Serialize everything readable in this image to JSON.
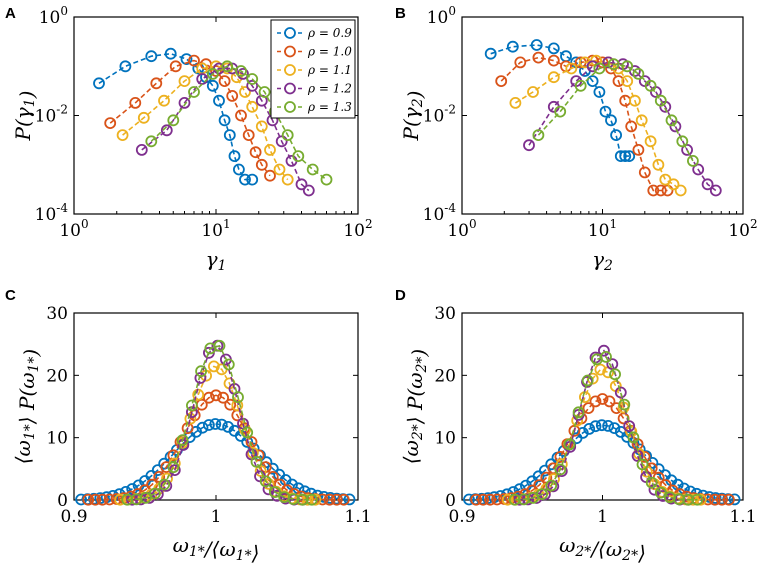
{
  "colors": {
    "series": [
      "#0072BD",
      "#D95319",
      "#EDB120",
      "#7E2F8E",
      "#77AC30"
    ]
  },
  "legend": {
    "entries": [
      "ρ = 0.9",
      "ρ = 1.0",
      "ρ = 1.1",
      "ρ = 1.2",
      "ρ = 1.3"
    ],
    "placement": "top-right of panel A"
  },
  "chart_data": [
    {
      "panel": "A",
      "type": "scatter",
      "xscale": "log",
      "yscale": "log",
      "xlim": [
        1,
        100
      ],
      "ylim": [
        0.0001,
        1
      ],
      "xlabel": "γ1",
      "ylabel": "P(γ1)",
      "xticks": [
        "10^0",
        "10^1",
        "10^2"
      ],
      "yticks": [
        "10^-4",
        "10^-2",
        "10^0"
      ],
      "series": [
        {
          "name": "ρ = 0.9",
          "x": [
            1.5,
            2.3,
            3.5,
            4.8,
            6.2,
            7.5,
            8.5,
            9.5,
            10.5,
            11.5,
            12.5,
            13.5,
            14.5,
            16,
            18
          ],
          "y": [
            0.045,
            0.1,
            0.16,
            0.18,
            0.14,
            0.09,
            0.06,
            0.04,
            0.02,
            0.008,
            0.004,
            0.0015,
            0.0008,
            0.0005,
            0.0005
          ]
        },
        {
          "name": "ρ = 1.0",
          "x": [
            1.8,
            2.7,
            3.8,
            5.2,
            7,
            8.5,
            10,
            11.5,
            13,
            15,
            17,
            19,
            21,
            24
          ],
          "y": [
            0.007,
            0.018,
            0.045,
            0.1,
            0.13,
            0.11,
            0.08,
            0.05,
            0.025,
            0.01,
            0.004,
            0.0018,
            0.001,
            0.0006
          ]
        },
        {
          "name": "ρ = 1.1",
          "x": [
            2.2,
            3.1,
            4.3,
            6,
            8,
            10,
            12,
            14,
            16,
            18,
            21,
            24,
            28,
            32
          ],
          "y": [
            0.004,
            0.009,
            0.02,
            0.05,
            0.09,
            0.1,
            0.09,
            0.06,
            0.03,
            0.015,
            0.006,
            0.002,
            0.0008,
            0.0005
          ]
        },
        {
          "name": "ρ = 1.2",
          "x": [
            3,
            4.5,
            6,
            8,
            10.5,
            13,
            15.5,
            18,
            21,
            25,
            29,
            34,
            40,
            45
          ],
          "y": [
            0.002,
            0.005,
            0.018,
            0.055,
            0.09,
            0.09,
            0.07,
            0.04,
            0.02,
            0.008,
            0.003,
            0.0012,
            0.0004,
            0.0003
          ]
        },
        {
          "name": "ρ = 1.3",
          "x": [
            3.5,
            5,
            7,
            9.5,
            12,
            15,
            18,
            22,
            26,
            32,
            38,
            48,
            60
          ],
          "y": [
            0.003,
            0.008,
            0.03,
            0.07,
            0.1,
            0.08,
            0.055,
            0.03,
            0.012,
            0.004,
            0.0015,
            0.0008,
            0.0005
          ]
        }
      ]
    },
    {
      "panel": "B",
      "type": "scatter",
      "xscale": "log",
      "yscale": "log",
      "xlim": [
        1,
        100
      ],
      "ylim": [
        0.0001,
        1
      ],
      "xlabel": "γ2",
      "ylabel": "P(γ2)",
      "xticks": [
        "10^0",
        "10^1",
        "10^2"
      ],
      "yticks": [
        "10^-4",
        "10^-2",
        "10^0"
      ],
      "series": [
        {
          "name": "ρ = 0.9",
          "x": [
            1.6,
            2.3,
            3.4,
            4.5,
            5.5,
            6.5,
            7.5,
            8.5,
            9.5,
            10.5,
            11.5,
            12.5,
            13.5,
            14.5,
            15.5
          ],
          "y": [
            0.18,
            0.25,
            0.27,
            0.23,
            0.16,
            0.12,
            0.08,
            0.05,
            0.03,
            0.012,
            0.008,
            0.004,
            0.0015,
            0.0015,
            0.0015
          ]
        },
        {
          "name": "ρ = 1.0",
          "x": [
            1.9,
            2.6,
            3.5,
            4.5,
            5.5,
            7,
            8.5,
            10,
            11.5,
            13,
            14.5,
            16,
            18,
            20,
            23,
            26,
            29
          ],
          "y": [
            0.05,
            0.12,
            0.15,
            0.13,
            0.1,
            0.12,
            0.13,
            0.12,
            0.09,
            0.05,
            0.02,
            0.006,
            0.002,
            0.0007,
            0.0003,
            0.0003,
            0.0003
          ]
        },
        {
          "name": "ρ = 1.1",
          "x": [
            2.4,
            3.2,
            4.5,
            6,
            7.5,
            9,
            11,
            13,
            15,
            17,
            19,
            22,
            25,
            28,
            32,
            36
          ],
          "y": [
            0.018,
            0.03,
            0.06,
            0.09,
            0.12,
            0.13,
            0.12,
            0.09,
            0.05,
            0.02,
            0.008,
            0.003,
            0.001,
            0.0005,
            0.0004,
            0.0003
          ]
        },
        {
          "name": "ρ = 1.2",
          "x": [
            3,
            4.5,
            6.5,
            8.5,
            11,
            14,
            17,
            20,
            24,
            28,
            33,
            40,
            48,
            56,
            64
          ],
          "y": [
            0.0025,
            0.015,
            0.05,
            0.1,
            0.12,
            0.11,
            0.08,
            0.05,
            0.03,
            0.015,
            0.006,
            0.002,
            0.0008,
            0.0004,
            0.0003
          ]
        },
        {
          "name": "ρ = 1.3",
          "x": [
            3.5,
            5,
            7,
            9.5,
            12,
            15,
            18,
            22,
            26,
            31,
            37,
            44
          ],
          "y": [
            0.004,
            0.012,
            0.04,
            0.09,
            0.11,
            0.1,
            0.07,
            0.04,
            0.02,
            0.008,
            0.003,
            0.0012
          ]
        }
      ]
    },
    {
      "panel": "C",
      "type": "scatter",
      "xscale": "linear",
      "yscale": "linear",
      "xlim": [
        0.9,
        1.1
      ],
      "ylim": [
        0,
        30
      ],
      "xlabel": "ω1*/⟨ω1*⟩",
      "ylabel": "⟨ω1*⟩ P(ω1*)",
      "xticks": [
        "0.9",
        "1",
        "1.1"
      ],
      "yticks": [
        "0",
        "10",
        "20",
        "30"
      ],
      "widths": [
        0.03,
        0.023,
        0.018,
        0.016,
        0.017
      ],
      "peaks": [
        12.2,
        16.8,
        21.5,
        24.8,
        25.0
      ],
      "series": [
        {
          "name": "ρ = 0.9"
        },
        {
          "name": "ρ = 1.0"
        },
        {
          "name": "ρ = 1.1"
        },
        {
          "name": "ρ = 1.2"
        },
        {
          "name": "ρ = 1.3"
        }
      ]
    },
    {
      "panel": "D",
      "type": "scatter",
      "xscale": "linear",
      "yscale": "linear",
      "xlim": [
        0.9,
        1.1
      ],
      "ylim": [
        0,
        30
      ],
      "xlabel": "ω2*/⟨ω2*⟩",
      "ylabel": "⟨ω2*⟩ P(ω2*)",
      "xticks": [
        "0.9",
        "1",
        "1.1"
      ],
      "yticks": [
        "0",
        "10",
        "20",
        "30"
      ],
      "widths": [
        0.03,
        0.023,
        0.018,
        0.016,
        0.017
      ],
      "peaks": [
        12.0,
        16.2,
        21.0,
        24.0,
        23.2
      ],
      "series": [
        {
          "name": "ρ = 0.9"
        },
        {
          "name": "ρ = 1.0"
        },
        {
          "name": "ρ = 1.1"
        },
        {
          "name": "ρ = 1.2"
        },
        {
          "name": "ρ = 1.3"
        }
      ]
    }
  ]
}
